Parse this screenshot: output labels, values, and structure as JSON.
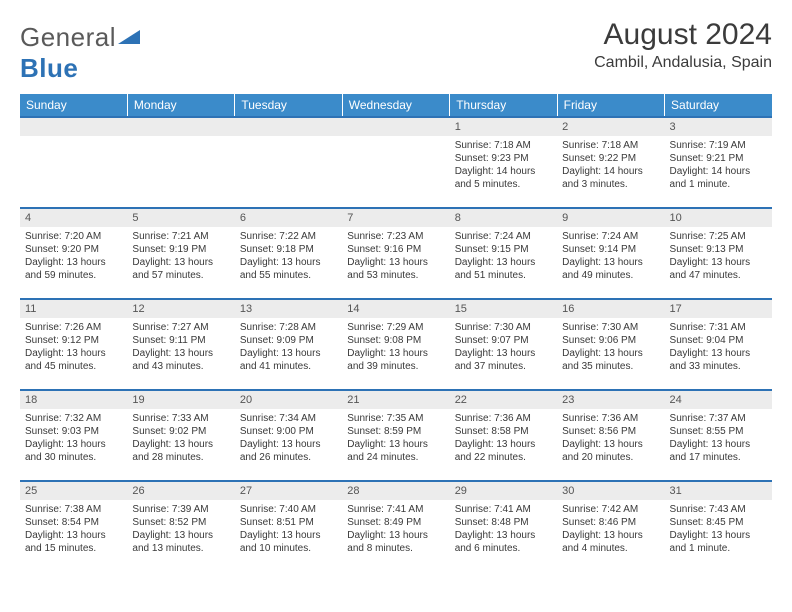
{
  "brand": {
    "text1": "General",
    "text2": "Blue",
    "triangle_color": "#2d72b5"
  },
  "title": "August 2024",
  "location": "Cambil, Andalusia, Spain",
  "colors": {
    "header_bg": "#3b8bca",
    "header_text": "#ffffff",
    "row_border": "#2d72b5",
    "daynum_bg": "#ececec",
    "body_text": "#393939"
  },
  "fonts": {
    "title_size": 30,
    "location_size": 16,
    "header_size": 12,
    "daynum_size": 11,
    "body_size": 10
  },
  "day_headers": [
    "Sunday",
    "Monday",
    "Tuesday",
    "Wednesday",
    "Thursday",
    "Friday",
    "Saturday"
  ],
  "weeks": [
    [
      null,
      null,
      null,
      null,
      {
        "n": "1",
        "sr": "7:18 AM",
        "ss": "9:23 PM",
        "dl": "14 hours and 5 minutes."
      },
      {
        "n": "2",
        "sr": "7:18 AM",
        "ss": "9:22 PM",
        "dl": "14 hours and 3 minutes."
      },
      {
        "n": "3",
        "sr": "7:19 AM",
        "ss": "9:21 PM",
        "dl": "14 hours and 1 minute."
      }
    ],
    [
      {
        "n": "4",
        "sr": "7:20 AM",
        "ss": "9:20 PM",
        "dl": "13 hours and 59 minutes."
      },
      {
        "n": "5",
        "sr": "7:21 AM",
        "ss": "9:19 PM",
        "dl": "13 hours and 57 minutes."
      },
      {
        "n": "6",
        "sr": "7:22 AM",
        "ss": "9:18 PM",
        "dl": "13 hours and 55 minutes."
      },
      {
        "n": "7",
        "sr": "7:23 AM",
        "ss": "9:16 PM",
        "dl": "13 hours and 53 minutes."
      },
      {
        "n": "8",
        "sr": "7:24 AM",
        "ss": "9:15 PM",
        "dl": "13 hours and 51 minutes."
      },
      {
        "n": "9",
        "sr": "7:24 AM",
        "ss": "9:14 PM",
        "dl": "13 hours and 49 minutes."
      },
      {
        "n": "10",
        "sr": "7:25 AM",
        "ss": "9:13 PM",
        "dl": "13 hours and 47 minutes."
      }
    ],
    [
      {
        "n": "11",
        "sr": "7:26 AM",
        "ss": "9:12 PM",
        "dl": "13 hours and 45 minutes."
      },
      {
        "n": "12",
        "sr": "7:27 AM",
        "ss": "9:11 PM",
        "dl": "13 hours and 43 minutes."
      },
      {
        "n": "13",
        "sr": "7:28 AM",
        "ss": "9:09 PM",
        "dl": "13 hours and 41 minutes."
      },
      {
        "n": "14",
        "sr": "7:29 AM",
        "ss": "9:08 PM",
        "dl": "13 hours and 39 minutes."
      },
      {
        "n": "15",
        "sr": "7:30 AM",
        "ss": "9:07 PM",
        "dl": "13 hours and 37 minutes."
      },
      {
        "n": "16",
        "sr": "7:30 AM",
        "ss": "9:06 PM",
        "dl": "13 hours and 35 minutes."
      },
      {
        "n": "17",
        "sr": "7:31 AM",
        "ss": "9:04 PM",
        "dl": "13 hours and 33 minutes."
      }
    ],
    [
      {
        "n": "18",
        "sr": "7:32 AM",
        "ss": "9:03 PM",
        "dl": "13 hours and 30 minutes."
      },
      {
        "n": "19",
        "sr": "7:33 AM",
        "ss": "9:02 PM",
        "dl": "13 hours and 28 minutes."
      },
      {
        "n": "20",
        "sr": "7:34 AM",
        "ss": "9:00 PM",
        "dl": "13 hours and 26 minutes."
      },
      {
        "n": "21",
        "sr": "7:35 AM",
        "ss": "8:59 PM",
        "dl": "13 hours and 24 minutes."
      },
      {
        "n": "22",
        "sr": "7:36 AM",
        "ss": "8:58 PM",
        "dl": "13 hours and 22 minutes."
      },
      {
        "n": "23",
        "sr": "7:36 AM",
        "ss": "8:56 PM",
        "dl": "13 hours and 20 minutes."
      },
      {
        "n": "24",
        "sr": "7:37 AM",
        "ss": "8:55 PM",
        "dl": "13 hours and 17 minutes."
      }
    ],
    [
      {
        "n": "25",
        "sr": "7:38 AM",
        "ss": "8:54 PM",
        "dl": "13 hours and 15 minutes."
      },
      {
        "n": "26",
        "sr": "7:39 AM",
        "ss": "8:52 PM",
        "dl": "13 hours and 13 minutes."
      },
      {
        "n": "27",
        "sr": "7:40 AM",
        "ss": "8:51 PM",
        "dl": "13 hours and 10 minutes."
      },
      {
        "n": "28",
        "sr": "7:41 AM",
        "ss": "8:49 PM",
        "dl": "13 hours and 8 minutes."
      },
      {
        "n": "29",
        "sr": "7:41 AM",
        "ss": "8:48 PM",
        "dl": "13 hours and 6 minutes."
      },
      {
        "n": "30",
        "sr": "7:42 AM",
        "ss": "8:46 PM",
        "dl": "13 hours and 4 minutes."
      },
      {
        "n": "31",
        "sr": "7:43 AM",
        "ss": "8:45 PM",
        "dl": "13 hours and 1 minute."
      }
    ]
  ],
  "labels": {
    "sunrise": "Sunrise:",
    "sunset": "Sunset:",
    "daylight": "Daylight:"
  }
}
